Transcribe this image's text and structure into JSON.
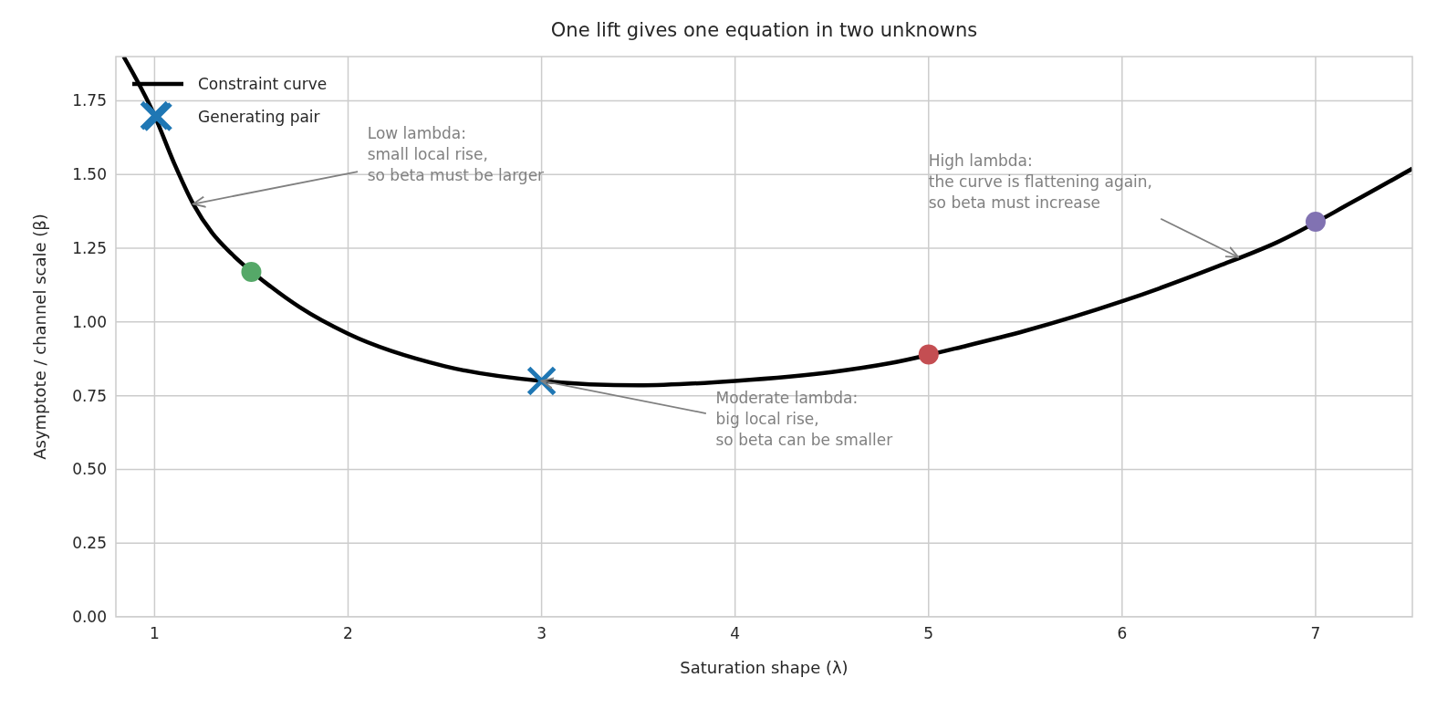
{
  "chart_data": {
    "type": "line",
    "title": "One lift gives one equation in two unknowns",
    "xlabel": "Saturation shape (λ)",
    "ylabel": "Asymptote / channel scale (β)",
    "xlim": [
      0.8,
      7.5
    ],
    "xticks": [
      1,
      2,
      3,
      4,
      5,
      6,
      7
    ],
    "ylim": [
      0,
      1.9
    ],
    "yticks": [
      {
        "value": 0,
        "label": "0.00"
      },
      {
        "value": 0.25,
        "label": "0.25"
      },
      {
        "value": 0.5,
        "label": "0.50"
      },
      {
        "value": 0.75,
        "label": "0.75"
      },
      {
        "value": 1,
        "label": "1.00"
      },
      {
        "value": 1.25,
        "label": "1.25"
      },
      {
        "value": 1.5,
        "label": "1.50"
      },
      {
        "value": 1.75,
        "label": "1.75"
      }
    ],
    "grid": true,
    "legend": "top left",
    "series": [
      {
        "name": "Constraint curve",
        "color": "#000000",
        "line_style": "solid",
        "marker": "none",
        "x": [
          0.84,
          1.0,
          1.1,
          1.2,
          1.3,
          1.4,
          1.6,
          1.75,
          2.0,
          2.5,
          3.0,
          3.5,
          4.0,
          4.5,
          4.8,
          5.2,
          5.5,
          6.0,
          6.5,
          6.8,
          7.2,
          7.5
        ],
        "values": [
          1.9,
          1.7,
          1.54,
          1.4,
          1.3,
          1.23,
          1.12,
          1.05,
          0.96,
          0.85,
          0.8,
          0.785,
          0.8,
          0.83,
          0.86,
          0.92,
          0.97,
          1.07,
          1.19,
          1.27,
          1.41,
          1.52
        ]
      },
      {
        "name": "Generating pair",
        "type": "scatter",
        "color": "#1f77b4",
        "marker": "cross",
        "x": [
          1,
          3
        ],
        "values": [
          1.7,
          0.8
        ]
      },
      {
        "type": "scatter",
        "marker": "circle",
        "colors": [
          "#55a868",
          "#c44e52",
          "#8172b2"
        ],
        "x": [
          1.5,
          5,
          7
        ],
        "values": [
          1.17,
          0.89,
          1.34
        ]
      }
    ],
    "annotations": [
      {
        "text": "Low lambda:\nsmall local rise,\nso beta must be larger",
        "x": 1.2,
        "y": 1.4
      },
      {
        "text": "Moderate lambda:\nbig local rise,\nso beta can be smaller",
        "x": 3.0,
        "y": 0.8
      },
      {
        "text": "High lambda:\nthe curve is flattening again,\nso beta must increase",
        "x": 6.6,
        "y": 1.22
      }
    ]
  }
}
